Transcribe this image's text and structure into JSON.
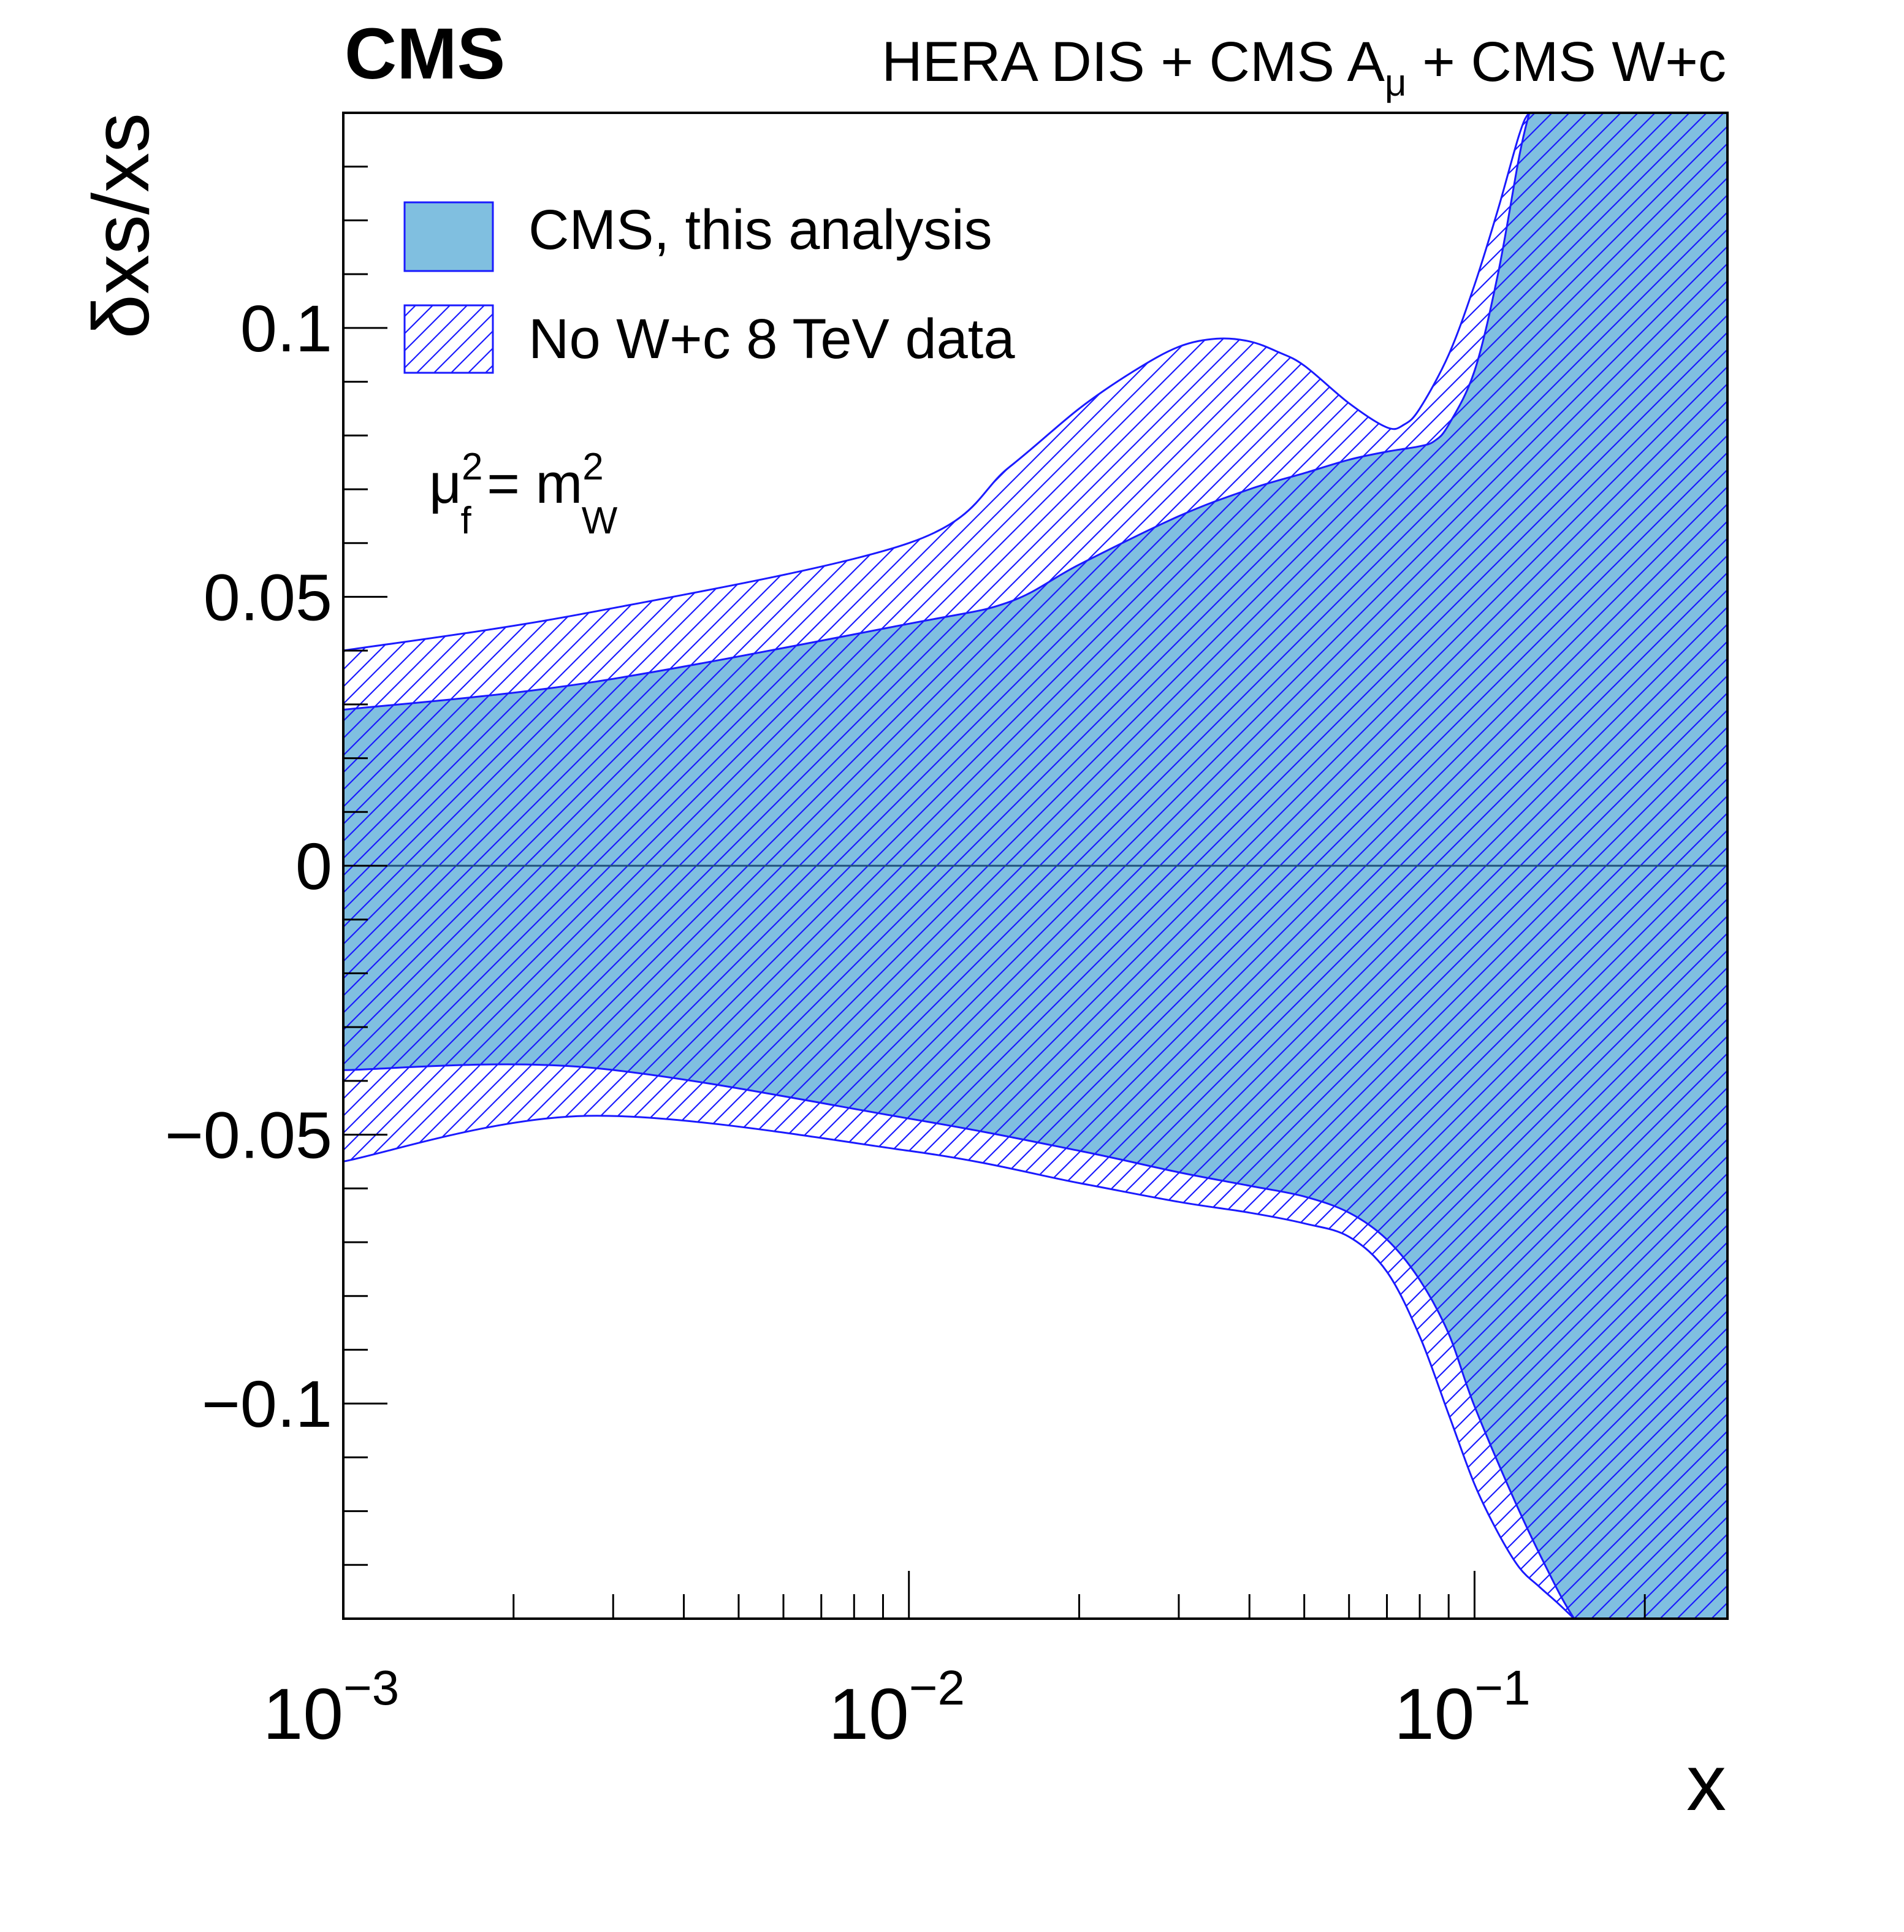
{
  "chart_data": {
    "type": "area",
    "experiment_label": "CMS",
    "dataset_label": {
      "text": "HERA DIS + CMS A",
      "subscript": "μ",
      "suffix": " + CMS W+c"
    },
    "xlabel": "x",
    "ylabel": "δxs/xs",
    "x_scale": "log",
    "xlim": [
      0.001,
      0.28
    ],
    "ylim": [
      -0.14,
      0.14
    ],
    "yticks": [
      {
        "value": -0.1,
        "label": "−0.1"
      },
      {
        "value": -0.05,
        "label": "−0.05"
      },
      {
        "value": 0,
        "label": "0"
      },
      {
        "value": 0.05,
        "label": "0.05"
      },
      {
        "value": 0.1,
        "label": "0.1"
      }
    ],
    "xticks": [
      {
        "value": 0.001,
        "base": "10",
        "exp": "−3"
      },
      {
        "value": 0.01,
        "base": "10",
        "exp": "−2"
      },
      {
        "value": 0.1,
        "base": "10",
        "exp": "−1"
      }
    ],
    "annotation": {
      "mu": "μ",
      "mu_sup": "2",
      "mu_sub": "f",
      "equals": " = m",
      "m_sup": "2",
      "m_sub": "W"
    },
    "legend_placement": "top-left",
    "reference_line": 0,
    "series": [
      {
        "name": "No W+c 8 TeV data",
        "style": "hatched",
        "color": "#1a1aff",
        "upper": {
          "x": [
            0.001,
            0.0027,
            0.01,
            0.015,
            0.02,
            0.025,
            0.03,
            0.035,
            0.04,
            0.045,
            0.05,
            0.06,
            0.07,
            0.075,
            0.08,
            0.09,
            0.1,
            0.11,
            0.12,
            0.125,
            0.13,
            0.14
          ],
          "y": [
            0.04,
            0.047,
            0.06,
            0.074,
            0.085,
            0.092,
            0.0965,
            0.098,
            0.0975,
            0.0955,
            0.093,
            0.086,
            0.0815,
            0.082,
            0.085,
            0.095,
            0.108,
            0.122,
            0.136,
            0.14,
            0.14,
            0.14
          ]
        },
        "lower": {
          "x": [
            0.001,
            0.0027,
            0.01,
            0.02,
            0.03,
            0.04,
            0.05,
            0.06,
            0.07,
            0.08,
            0.09,
            0.1,
            0.11,
            0.12,
            0.13,
            0.14,
            0.15
          ],
          "y": [
            -0.055,
            -0.0465,
            -0.053,
            -0.059,
            -0.0625,
            -0.0645,
            -0.0665,
            -0.069,
            -0.0755,
            -0.0875,
            -0.102,
            -0.115,
            -0.124,
            -0.1305,
            -0.134,
            -0.137,
            -0.14
          ]
        }
      },
      {
        "name": "CMS, this analysis",
        "style": "filled",
        "color": "#80bfe0",
        "edge_color": "#1a1aff",
        "upper": {
          "x": [
            0.001,
            0.0027,
            0.01,
            0.015,
            0.02,
            0.03,
            0.04,
            0.05,
            0.06,
            0.07,
            0.08,
            0.085,
            0.09,
            0.1,
            0.11,
            0.12,
            0.125
          ],
          "y": [
            0.029,
            0.034,
            0.045,
            0.049,
            0.056,
            0.065,
            0.07,
            0.073,
            0.0755,
            0.077,
            0.078,
            0.079,
            0.082,
            0.092,
            0.11,
            0.132,
            0.14
          ]
        },
        "lower": {
          "x": [
            0.001,
            0.0027,
            0.01,
            0.02,
            0.03,
            0.04,
            0.05,
            0.06,
            0.07,
            0.08,
            0.09,
            0.1,
            0.12,
            0.14,
            0.15
          ],
          "y": [
            -0.038,
            -0.0375,
            -0.047,
            -0.053,
            -0.057,
            -0.0595,
            -0.0615,
            -0.0645,
            -0.0695,
            -0.077,
            -0.087,
            -0.1005,
            -0.12,
            -0.1345,
            -0.14
          ]
        }
      }
    ]
  }
}
